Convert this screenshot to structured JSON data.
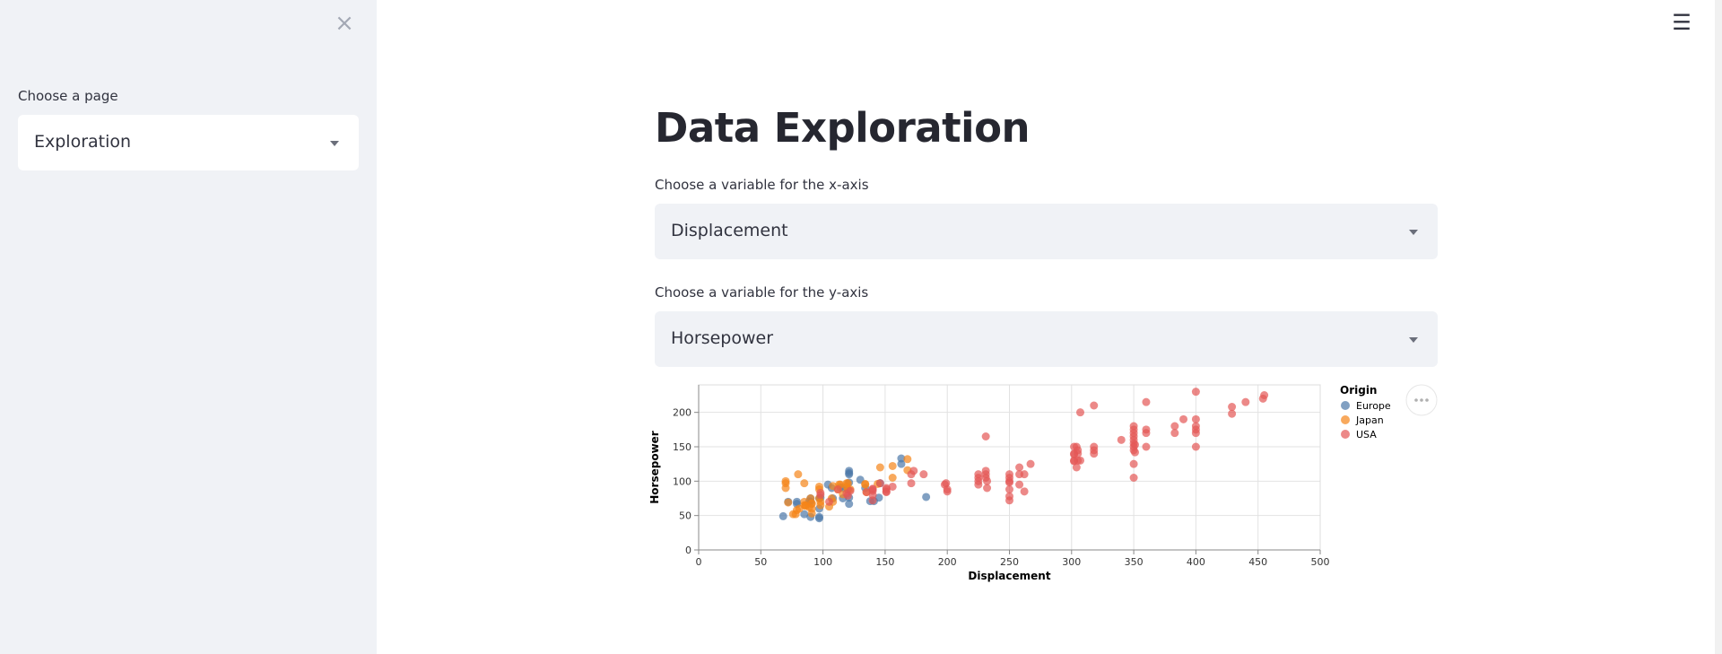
{
  "sidebar": {
    "close_icon": "×",
    "page_label": "Choose a page",
    "page_value": "Exploration"
  },
  "header": {
    "menu_icon": "☰"
  },
  "main": {
    "title": "Data Exploration",
    "x_label": "Choose a variable for the x-axis",
    "x_value": "Displacement",
    "y_label": "Choose a variable for the y-axis",
    "y_value": "Horsepower"
  },
  "chart_data": {
    "type": "scatter",
    "xlabel": "Displacement",
    "ylabel": "Horsepower",
    "xlim": [
      0,
      500
    ],
    "ylim": [
      0,
      240
    ],
    "xticks": [
      0,
      50,
      100,
      150,
      200,
      250,
      300,
      350,
      400,
      450,
      500
    ],
    "yticks": [
      0,
      50,
      100,
      150,
      200
    ],
    "grid": true,
    "legend": {
      "title": "Origin",
      "position": "right"
    },
    "series": [
      {
        "name": "Europe",
        "color": "#4c78a8",
        "points": [
          [
            68,
            49
          ],
          [
            72,
            70
          ],
          [
            79,
            67
          ],
          [
            79,
            70
          ],
          [
            85,
            52
          ],
          [
            89,
            71
          ],
          [
            90,
            48
          ],
          [
            90,
            70
          ],
          [
            90,
            75
          ],
          [
            97,
            46
          ],
          [
            97,
            48
          ],
          [
            97,
            60
          ],
          [
            97,
            75
          ],
          [
            98,
            76
          ],
          [
            104,
            95
          ],
          [
            107,
            90
          ],
          [
            108,
            75
          ],
          [
            114,
            91
          ],
          [
            116,
            75
          ],
          [
            116,
            90
          ],
          [
            121,
            67
          ],
          [
            121,
            76
          ],
          [
            121,
            98
          ],
          [
            121,
            110
          ],
          [
            121,
            112
          ],
          [
            121,
            115
          ],
          [
            120,
            88
          ],
          [
            134,
            90
          ],
          [
            141,
            71
          ],
          [
            145,
            76
          ],
          [
            146,
            97
          ],
          [
            163,
            125
          ],
          [
            163,
            133
          ],
          [
            183,
            77
          ],
          [
            130,
            102
          ],
          [
            138,
            71
          ]
        ]
      },
      {
        "name": "Japan",
        "color": "#f58518",
        "points": [
          [
            70,
            90
          ],
          [
            70,
            97
          ],
          [
            70,
            100
          ],
          [
            72,
            69
          ],
          [
            76,
            52
          ],
          [
            78,
            52
          ],
          [
            79,
            58
          ],
          [
            81,
            60
          ],
          [
            85,
            65
          ],
          [
            85,
            70
          ],
          [
            86,
            65
          ],
          [
            86,
            64
          ],
          [
            89,
            62
          ],
          [
            90,
            75
          ],
          [
            91,
            53
          ],
          [
            91,
            60
          ],
          [
            91,
            67
          ],
          [
            91,
            68
          ],
          [
            97,
            88
          ],
          [
            97,
            92
          ],
          [
            97,
            75
          ],
          [
            98,
            70
          ],
          [
            98,
            65
          ],
          [
            105,
            63
          ],
          [
            107,
            75
          ],
          [
            108,
            93
          ],
          [
            108,
            70
          ],
          [
            112,
            88
          ],
          [
            113,
            95
          ],
          [
            114,
            95
          ],
          [
            116,
            81
          ],
          [
            119,
            97
          ],
          [
            119,
            92
          ],
          [
            120,
            88
          ],
          [
            120,
            97
          ],
          [
            122,
            88
          ],
          [
            134,
            95
          ],
          [
            134,
            96
          ],
          [
            135,
            84
          ],
          [
            144,
            96
          ],
          [
            146,
            120
          ],
          [
            156,
            105
          ],
          [
            156,
            122
          ],
          [
            168,
            116
          ],
          [
            168,
            132
          ],
          [
            80,
            110
          ],
          [
            85,
            97
          ]
        ]
      },
      {
        "name": "USA",
        "color": "#e45756",
        "points": [
          [
            98,
            80
          ],
          [
            98,
            83
          ],
          [
            105,
            70
          ],
          [
            112,
            88
          ],
          [
            119,
            82
          ],
          [
            120,
            79
          ],
          [
            122,
            86
          ],
          [
            135,
            84
          ],
          [
            140,
            72
          ],
          [
            140,
            80
          ],
          [
            140,
            86
          ],
          [
            140,
            88
          ],
          [
            140,
            89
          ],
          [
            146,
            97
          ],
          [
            151,
            84
          ],
          [
            151,
            85
          ],
          [
            151,
            88
          ],
          [
            151,
            90
          ],
          [
            156,
            92
          ],
          [
            171,
            97
          ],
          [
            171,
            110
          ],
          [
            173,
            115
          ],
          [
            181,
            110
          ],
          [
            198,
            95
          ],
          [
            199,
            97
          ],
          [
            200,
            85
          ],
          [
            200,
            88
          ],
          [
            225,
            95
          ],
          [
            225,
            100
          ],
          [
            225,
            105
          ],
          [
            225,
            110
          ],
          [
            231,
            105
          ],
          [
            231,
            110
          ],
          [
            231,
            115
          ],
          [
            231,
            165
          ],
          [
            232,
            90
          ],
          [
            232,
            100
          ],
          [
            250,
            72
          ],
          [
            250,
            78
          ],
          [
            250,
            88
          ],
          [
            250,
            98
          ],
          [
            250,
            100
          ],
          [
            250,
            105
          ],
          [
            250,
            110
          ],
          [
            258,
            95
          ],
          [
            258,
            110
          ],
          [
            258,
            120
          ],
          [
            262,
            85
          ],
          [
            262,
            110
          ],
          [
            267,
            125
          ],
          [
            302,
            129
          ],
          [
            302,
            130
          ],
          [
            302,
            139
          ],
          [
            302,
            140
          ],
          [
            302,
            150
          ],
          [
            304,
            120
          ],
          [
            304,
            150
          ],
          [
            305,
            130
          ],
          [
            305,
            140
          ],
          [
            305,
            145
          ],
          [
            307,
            130
          ],
          [
            307,
            200
          ],
          [
            318,
            140
          ],
          [
            318,
            145
          ],
          [
            318,
            150
          ],
          [
            318,
            210
          ],
          [
            340,
            160
          ],
          [
            350,
            105
          ],
          [
            350,
            125
          ],
          [
            350,
            145
          ],
          [
            350,
            150
          ],
          [
            350,
            155
          ],
          [
            350,
            160
          ],
          [
            350,
            165
          ],
          [
            350,
            170
          ],
          [
            350,
            175
          ],
          [
            350,
            180
          ],
          [
            351,
            142
          ],
          [
            351,
            153
          ],
          [
            360,
            150
          ],
          [
            360,
            170
          ],
          [
            360,
            175
          ],
          [
            360,
            215
          ],
          [
            383,
            170
          ],
          [
            383,
            180
          ],
          [
            390,
            190
          ],
          [
            400,
            150
          ],
          [
            400,
            170
          ],
          [
            400,
            175
          ],
          [
            400,
            180
          ],
          [
            400,
            190
          ],
          [
            400,
            230
          ],
          [
            429,
            198
          ],
          [
            429,
            208
          ],
          [
            440,
            215
          ],
          [
            454,
            220
          ],
          [
            455,
            225
          ]
        ]
      }
    ]
  }
}
